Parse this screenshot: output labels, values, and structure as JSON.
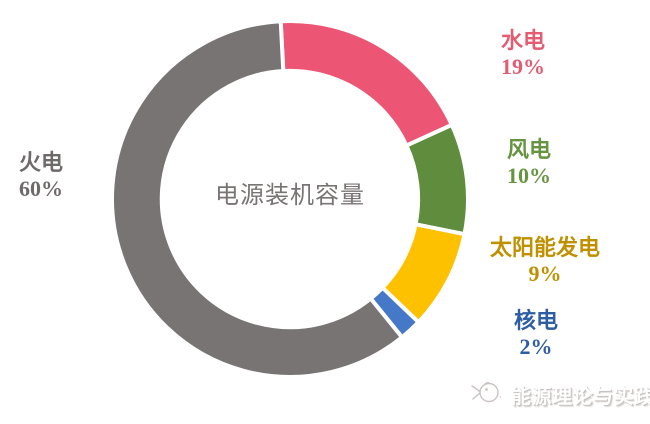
{
  "page": {
    "background": "#ffffff"
  },
  "chart_data": {
    "type": "pie",
    "variant": "donut",
    "title": "电源装机容量",
    "categories": [
      "水电",
      "风电",
      "太阳能发电",
      "核电",
      "火电"
    ],
    "values": [
      19,
      10,
      9,
      2,
      60
    ],
    "unit": "%",
    "colors": [
      "#ec5674",
      "#5f8c3d",
      "#fec100",
      "#4678c8",
      "#787474"
    ],
    "label_colors": [
      "#e45c72",
      "#669440",
      "#bf9000",
      "#2f5da2",
      "#6e6a6a"
    ],
    "start_angle_deg": -3,
    "donut_hole_ratio": 0.72,
    "legend_position": "callouts-around-ring",
    "callouts": [
      {
        "label": "水电",
        "value": "19%"
      },
      {
        "label": "风电",
        "value": "10%"
      },
      {
        "label": "太阳能发电",
        "value": "9%"
      },
      {
        "label": "核电",
        "value": "2%"
      },
      {
        "label": "火电",
        "value": "60%"
      }
    ]
  },
  "watermark": {
    "logo": "fish-sketch-icon",
    "text": "能源理论与实践"
  }
}
